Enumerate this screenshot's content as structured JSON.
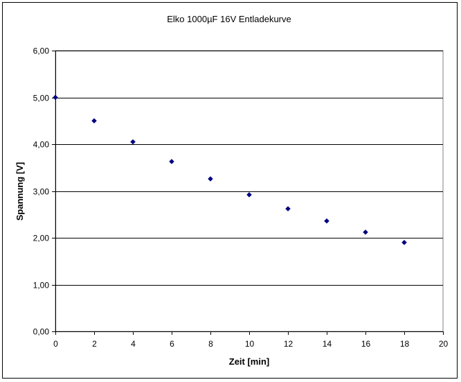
{
  "chart_data": {
    "type": "scatter",
    "title": "Elko 1000µF 16V Entladekurve",
    "xlabel": "Zeit [min]",
    "ylabel": "Spannung [V]",
    "xlim": [
      0,
      20
    ],
    "ylim": [
      0,
      6
    ],
    "x_ticks": [
      "0",
      "2",
      "4",
      "6",
      "8",
      "10",
      "12",
      "14",
      "16",
      "18",
      "20"
    ],
    "y_ticks": [
      "0,00",
      "1,00",
      "2,00",
      "3,00",
      "4,00",
      "5,00",
      "6,00"
    ],
    "grid": "horizontal major gridlines",
    "legend": "none",
    "marker": "diamond",
    "marker_color": "#000080",
    "series": [
      {
        "x": [
          0,
          2,
          4,
          6,
          8,
          10,
          12,
          14,
          16,
          18
        ],
        "y": [
          5.0,
          4.5,
          4.05,
          3.63,
          3.26,
          2.92,
          2.62,
          2.36,
          2.12,
          1.9
        ]
      }
    ]
  }
}
